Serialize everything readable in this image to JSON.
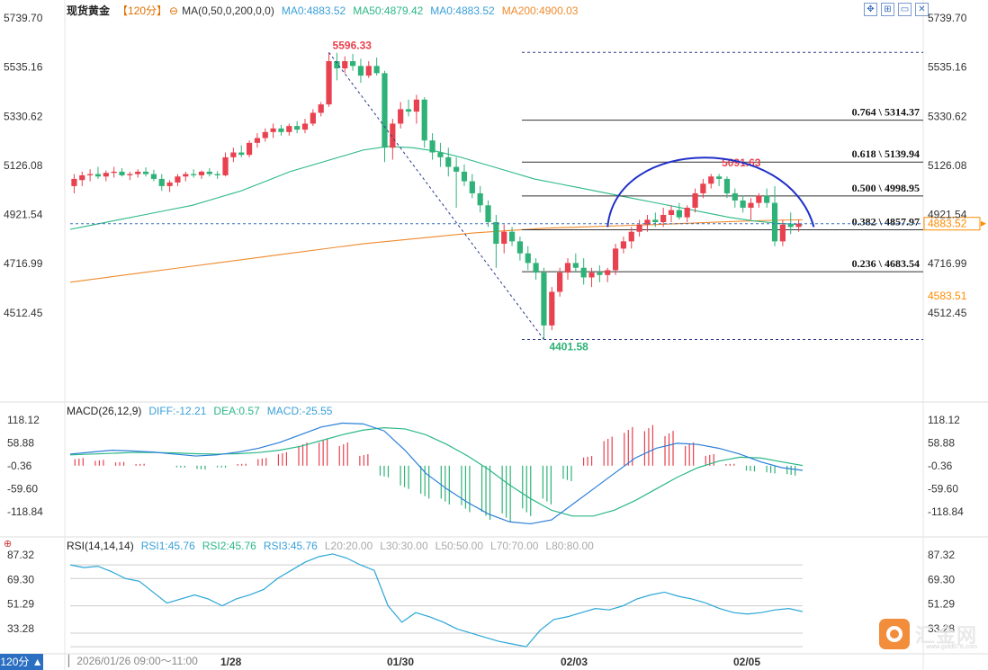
{
  "header": {
    "instrument": "现货黄金",
    "period_tag": "【120分】",
    "ma_spec": "MA(0,50,0,200,0,0)",
    "ma0_a": "MA0:4883.52",
    "ma50": "MA50:4879.42",
    "ma0_b": "MA0:4883.52",
    "ma200": "MA200:4900.03"
  },
  "macd_header": {
    "name": "MACD(26,12,9)",
    "diff": "DIFF:-12.21",
    "dea": "DEA:0.57",
    "macd": "MACD:-25.55"
  },
  "rsi_header": {
    "name": "RSI(14,14,14)",
    "rsi1": "RSI1:45.76",
    "rsi2": "RSI2:45.76",
    "rsi3": "RSI3:45.76",
    "l20": "L20:20.00",
    "l30": "L30:30.00",
    "l50": "L50:50.00",
    "l70": "L70:70.00",
    "l80": "L80:80.00"
  },
  "footer": {
    "period_button": "120分",
    "time_range": "2026/01/26 09:00～11:00",
    "dates": [
      "1/28",
      "01/30",
      "02/03",
      "02/05"
    ]
  },
  "logo": {
    "name": "汇金网",
    "url": "www.gold678.com"
  },
  "colors": {
    "up": "#e8414f",
    "down": "#2fb277",
    "ma50": "#2bb886",
    "ma200": "#f08a2c",
    "arc": "#1f2fc8",
    "dashed": "#2a3a8a",
    "price_tag": "#ff8c00"
  },
  "chart_data": [
    {
      "type": "candlestick",
      "title": "现货黄金",
      "y_ticks": [
        5739.7,
        5535.16,
        5330.62,
        5126.08,
        4921.54,
        4716.99,
        4512.45
      ],
      "ylim": [
        4400,
        5770
      ],
      "last_price_label": "4883.52",
      "ref_price_label": "4583.51",
      "marked_high": "5596.33",
      "marked_low": "4401.58",
      "secondary_high": "5091.63",
      "fib_levels": [
        {
          "ratio": "0.764",
          "price": 5314.37,
          "label": "0.764 \\ 5314.37"
        },
        {
          "ratio": "0.618",
          "price": 5139.94,
          "label": "0.618 \\ 5139.94"
        },
        {
          "ratio": "0.500",
          "price": 4998.95,
          "label": "0.500 \\ 4998.95"
        },
        {
          "ratio": "0.382",
          "price": 4857.97,
          "label": "0.382 \\ 4857.97"
        },
        {
          "ratio": "0.236",
          "price": 4683.54,
          "label": "0.236 \\ 4683.54"
        }
      ],
      "fib_top": 5596.33,
      "fib_bottom": 4401.58,
      "ohlc": [
        [
          5040,
          5090,
          5010,
          5070
        ],
        [
          5065,
          5100,
          5040,
          5085
        ],
        [
          5085,
          5110,
          5060,
          5090
        ],
        [
          5090,
          5120,
          5070,
          5080
        ],
        [
          5080,
          5105,
          5060,
          5095
        ],
        [
          5095,
          5120,
          5075,
          5100
        ],
        [
          5100,
          5115,
          5080,
          5085
        ],
        [
          5085,
          5100,
          5065,
          5090
        ],
        [
          5090,
          5110,
          5075,
          5100
        ],
        [
          5100,
          5118,
          5080,
          5090
        ],
        [
          5090,
          5108,
          5060,
          5070
        ],
        [
          5070,
          5090,
          5020,
          5040
        ],
        [
          5040,
          5065,
          5015,
          5055
        ],
        [
          5055,
          5090,
          5040,
          5080
        ],
        [
          5080,
          5100,
          5060,
          5090
        ],
        [
          5090,
          5110,
          5075,
          5085
        ],
        [
          5085,
          5105,
          5070,
          5100
        ],
        [
          5100,
          5115,
          5080,
          5090
        ],
        [
          5090,
          5102,
          5070,
          5085
        ],
        [
          5085,
          5180,
          5080,
          5160
        ],
        [
          5160,
          5200,
          5140,
          5180
        ],
        [
          5180,
          5210,
          5160,
          5170
        ],
        [
          5170,
          5230,
          5160,
          5220
        ],
        [
          5220,
          5260,
          5200,
          5240
        ],
        [
          5240,
          5280,
          5225,
          5265
        ],
        [
          5265,
          5300,
          5240,
          5280
        ],
        [
          5280,
          5295,
          5250,
          5265
        ],
        [
          5265,
          5300,
          5250,
          5290
        ],
        [
          5290,
          5310,
          5260,
          5275
        ],
        [
          5275,
          5320,
          5260,
          5300
        ],
        [
          5300,
          5360,
          5290,
          5345
        ],
        [
          5345,
          5390,
          5330,
          5380
        ],
        [
          5380,
          5596,
          5370,
          5560
        ],
        [
          5560,
          5595,
          5480,
          5530
        ],
        [
          5530,
          5580,
          5510,
          5560
        ],
        [
          5560,
          5590,
          5520,
          5540
        ],
        [
          5540,
          5570,
          5470,
          5500
        ],
        [
          5500,
          5560,
          5490,
          5540
        ],
        [
          5540,
          5575,
          5500,
          5510
        ],
        [
          5510,
          5520,
          5140,
          5200
        ],
        [
          5200,
          5320,
          5150,
          5300
        ],
        [
          5300,
          5390,
          5280,
          5360
        ],
        [
          5360,
          5400,
          5330,
          5350
        ],
        [
          5350,
          5420,
          5300,
          5400
        ],
        [
          5400,
          5410,
          5200,
          5230
        ],
        [
          5230,
          5260,
          5150,
          5180
        ],
        [
          5180,
          5220,
          5120,
          5160
        ],
        [
          5160,
          5200,
          5080,
          5120
        ],
        [
          5120,
          5160,
          4950,
          5100
        ],
        [
          5100,
          5130,
          5040,
          5060
        ],
        [
          5060,
          5090,
          4990,
          5010
        ],
        [
          5010,
          5040,
          4930,
          4960
        ],
        [
          4960,
          4980,
          4870,
          4890
        ],
        [
          4890,
          4920,
          4700,
          4800
        ],
        [
          4800,
          4880,
          4760,
          4850
        ],
        [
          4850,
          4870,
          4790,
          4810
        ],
        [
          4810,
          4830,
          4730,
          4760
        ],
        [
          4760,
          4790,
          4690,
          4720
        ],
        [
          4720,
          4740,
          4650,
          4680
        ],
        [
          4680,
          4700,
          4401,
          4460
        ],
        [
          4460,
          4620,
          4440,
          4600
        ],
        [
          4600,
          4700,
          4580,
          4680
        ],
        [
          4680,
          4740,
          4650,
          4720
        ],
        [
          4720,
          4760,
          4680,
          4700
        ],
        [
          4700,
          4740,
          4630,
          4660
        ],
        [
          4660,
          4700,
          4620,
          4680
        ],
        [
          4680,
          4710,
          4640,
          4670
        ],
        [
          4670,
          4700,
          4640,
          4690
        ],
        [
          4690,
          4800,
          4670,
          4780
        ],
        [
          4780,
          4830,
          4760,
          4810
        ],
        [
          4810,
          4870,
          4780,
          4850
        ],
        [
          4850,
          4900,
          4830,
          4880
        ],
        [
          4880,
          4920,
          4850,
          4900
        ],
        [
          4900,
          4930,
          4870,
          4890
        ],
        [
          4890,
          4950,
          4870,
          4920
        ],
        [
          4920,
          4960,
          4890,
          4940
        ],
        [
          4940,
          4970,
          4900,
          4910
        ],
        [
          4910,
          4960,
          4890,
          4950
        ],
        [
          4950,
          5030,
          4930,
          5010
        ],
        [
          5010,
          5070,
          4990,
          5050
        ],
        [
          5050,
          5091,
          5030,
          5080
        ],
        [
          5080,
          5091,
          5040,
          5070
        ],
        [
          5070,
          5080,
          4990,
          5010
        ],
        [
          5010,
          5030,
          4950,
          4980
        ],
        [
          4980,
          5000,
          4930,
          4950
        ],
        [
          4950,
          4990,
          4900,
          4970
        ],
        [
          4970,
          5010,
          4950,
          5000
        ],
        [
          5000,
          5030,
          4950,
          4970
        ],
        [
          4970,
          5040,
          4790,
          4810
        ],
        [
          4810,
          4900,
          4790,
          4880
        ],
        [
          4880,
          4930,
          4840,
          4870
        ],
        [
          4870,
          4900,
          4850,
          4884
        ]
      ],
      "ma50": [
        4860,
        4880,
        4900,
        4920,
        4940,
        4960,
        4990,
        5020,
        5060,
        5100,
        5130,
        5160,
        5190,
        5205,
        5200,
        5185,
        5160,
        5130,
        5100,
        5070,
        5050,
        5030,
        5010,
        4990,
        4970,
        4950,
        4930,
        4910,
        4895,
        4885,
        4879
      ],
      "ma200": [
        4640,
        4660,
        4680,
        4700,
        4720,
        4740,
        4760,
        4780,
        4800,
        4815,
        4830,
        4845,
        4855,
        4865,
        4870,
        4875,
        4880,
        4886,
        4892,
        4897,
        4900
      ],
      "swing_line": [
        [
          32,
          5596.33
        ],
        [
          59,
          4401.58
        ]
      ]
    },
    {
      "type": "line",
      "title": "MACD(26,12,9)",
      "y_ticks": [
        118.12,
        58.88,
        -0.36,
        -59.6,
        -118.84
      ],
      "ylim": [
        -160,
        140
      ],
      "diff": [
        30,
        35,
        40,
        38,
        35,
        30,
        25,
        28,
        35,
        45,
        60,
        80,
        100,
        110,
        108,
        90,
        40,
        -20,
        -60,
        -95,
        -125,
        -145,
        -150,
        -140,
        -100,
        -60,
        -20,
        20,
        45,
        58,
        55,
        45,
        30,
        10,
        -5,
        -12
      ],
      "dea": [
        28,
        30,
        32,
        34,
        34,
        33,
        31,
        30,
        31,
        34,
        40,
        50,
        65,
        80,
        92,
        98,
        95,
        80,
        55,
        25,
        -10,
        -50,
        -85,
        -115,
        -130,
        -130,
        -115,
        -90,
        -60,
        -30,
        -5,
        12,
        22,
        20,
        10,
        0.57
      ],
      "macd_bars": [
        20,
        15,
        10,
        5,
        0,
        -5,
        -10,
        -5,
        5,
        20,
        35,
        60,
        70,
        60,
        30,
        -30,
        -60,
        -85,
        -100,
        -120,
        -140,
        -145,
        -130,
        -100,
        -40,
        25,
        75,
        100,
        105,
        90,
        60,
        30,
        5,
        -15,
        -20,
        -25.55
      ]
    },
    {
      "type": "line",
      "title": "RSI(14,14,14)",
      "y_ticks": [
        87.32,
        69.3,
        51.29,
        33.28
      ],
      "ylim": [
        20,
        95
      ],
      "levels": [
        80,
        70,
        50,
        30,
        20
      ],
      "rsi": [
        80,
        78,
        79,
        75,
        70,
        68,
        60,
        52,
        55,
        58,
        55,
        50,
        55,
        58,
        62,
        70,
        76,
        82,
        86,
        88,
        85,
        80,
        76,
        50,
        38,
        45,
        42,
        38,
        33,
        30,
        27,
        24,
        22,
        20,
        32,
        40,
        42,
        45,
        48,
        47,
        50,
        55,
        58,
        60,
        57,
        55,
        52,
        48,
        45,
        44,
        45,
        47,
        48,
        45.76
      ]
    }
  ]
}
